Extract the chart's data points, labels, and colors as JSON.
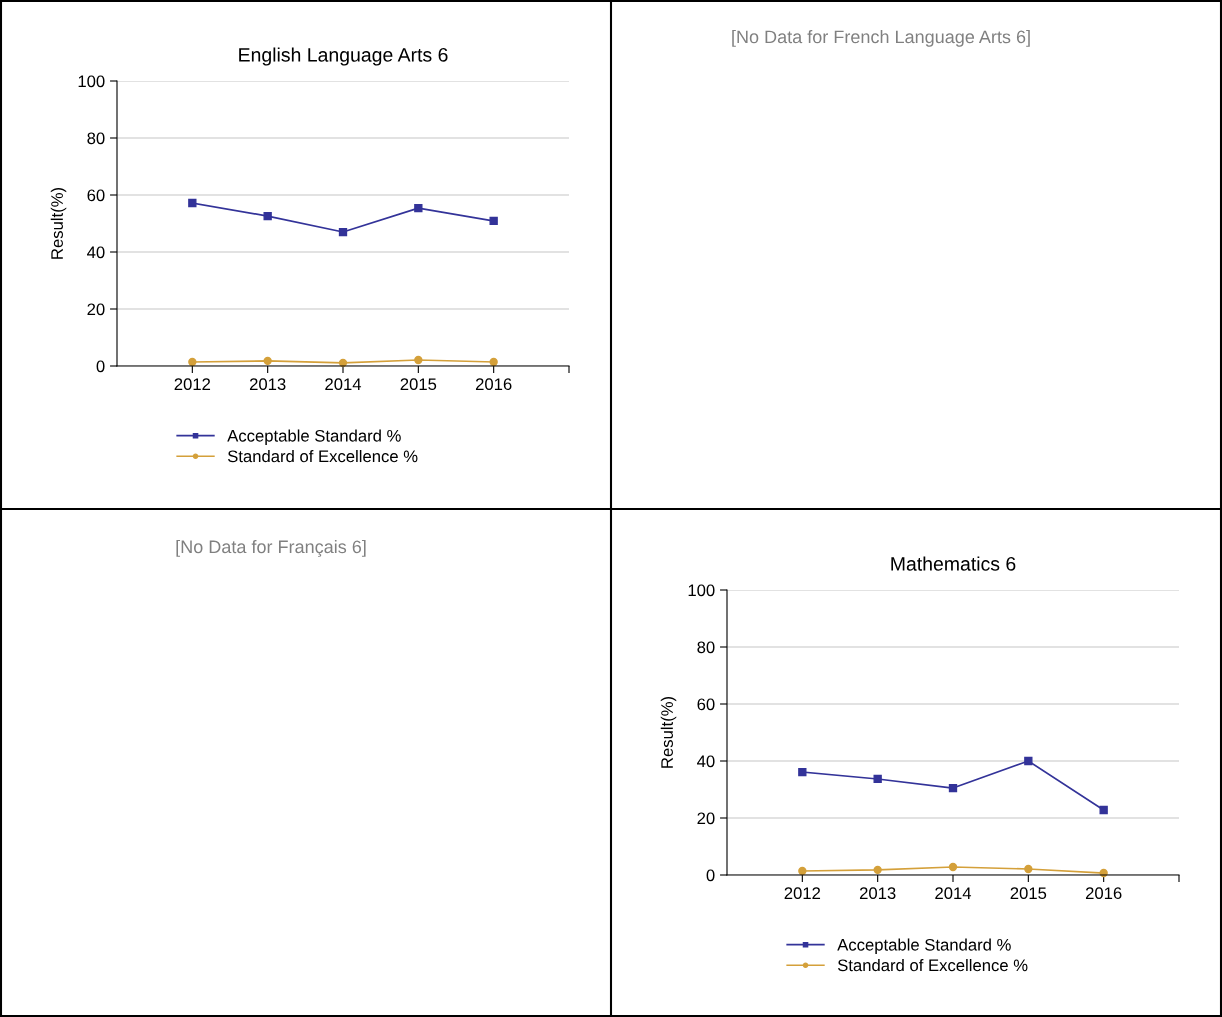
{
  "chart_data": [
    {
      "type": "line",
      "title": "English Language Arts 6",
      "ylabel": "Result(%)",
      "x": [
        2012,
        2013,
        2014,
        2015,
        2016
      ],
      "xlim": [
        2011,
        2017
      ],
      "xticks": [
        2012,
        2013,
        2014,
        2015,
        2016,
        {
          "value": 2017,
          "label": null
        }
      ],
      "ylim": [
        0,
        100
      ],
      "yticks": [
        0,
        20,
        40,
        60,
        80,
        100
      ],
      "grid": "y",
      "legend": "bottom",
      "series": [
        {
          "name": "Acceptable Standard %",
          "color": "#333399",
          "marker": "square",
          "values": [
            57.2,
            52.6,
            47.0,
            55.4,
            50.9
          ]
        },
        {
          "name": "Standard of Excellence %",
          "color": "#d4a03a",
          "marker": "circle",
          "values": [
            1.4,
            1.8,
            1.1,
            2.1,
            1.4
          ]
        }
      ]
    },
    {
      "type": "other",
      "title": "[No Data for French Language Arts 6]"
    },
    {
      "type": "other",
      "title": "[No Data for Français 6]"
    },
    {
      "type": "line",
      "title": "Mathematics 6",
      "ylabel": "Result(%)",
      "x": [
        2012,
        2013,
        2014,
        2015,
        2016
      ],
      "xlim": [
        2011,
        2017
      ],
      "xticks": [
        2012,
        2013,
        2014,
        2015,
        2016,
        {
          "value": 2017,
          "label": null
        }
      ],
      "ylim": [
        0,
        100
      ],
      "yticks": [
        0,
        20,
        40,
        60,
        80,
        100
      ],
      "grid": "y",
      "legend": "bottom",
      "series": [
        {
          "name": "Acceptable Standard %",
          "color": "#333399",
          "marker": "square",
          "values": [
            36.1,
            33.7,
            30.5,
            40.0,
            22.8
          ]
        },
        {
          "name": "Standard of Excellence %",
          "color": "#d4a03a",
          "marker": "circle",
          "values": [
            1.4,
            1.8,
            2.8,
            2.1,
            0.7
          ]
        }
      ]
    }
  ]
}
